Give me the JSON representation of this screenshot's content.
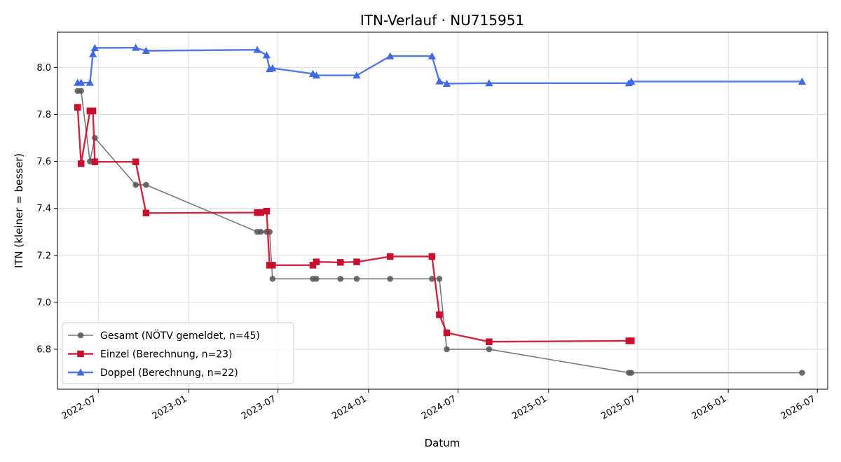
{
  "chart_data": {
    "type": "line",
    "title": "ITN-Verlauf · NU715951",
    "xlabel": "Datum",
    "ylabel": "ITN  (kleiner = besser)",
    "x_scale": "date",
    "xlim": [
      "2022-04-09",
      "2026-07-22"
    ],
    "ylim": [
      6.63,
      8.15
    ],
    "x_ticks": [
      "2022-07-01",
      "2023-01-01",
      "2023-07-01",
      "2024-01-01",
      "2024-07-01",
      "2025-01-01",
      "2025-07-01",
      "2026-01-01",
      "2026-07-01"
    ],
    "x_tick_labels": [
      "2022-07",
      "2023-01",
      "2023-07",
      "2024-01",
      "2024-07",
      "2025-01",
      "2025-07",
      "2026-01",
      "2026-07"
    ],
    "y_ticks": [
      6.8,
      7.0,
      7.2,
      7.4,
      7.6,
      7.8,
      8.0
    ],
    "y_tick_labels": [
      "6.8",
      "7.0",
      "7.2",
      "7.4",
      "7.6",
      "7.8",
      "8.0"
    ],
    "grid": true,
    "legend_position": "lower-left",
    "series": [
      {
        "name": "Gesamt (NÖTV gemeldet, n=45)",
        "color": "#555555",
        "marker": "circle",
        "points": [
          [
            "2022-05-20",
            7.9
          ],
          [
            "2022-05-27",
            7.9
          ],
          [
            "2022-06-14",
            7.6
          ],
          [
            "2022-06-24",
            7.7
          ],
          [
            "2022-09-15",
            7.5
          ],
          [
            "2022-10-06",
            7.5
          ],
          [
            "2023-05-20",
            7.3
          ],
          [
            "2023-05-27",
            7.3
          ],
          [
            "2023-06-08",
            7.3
          ],
          [
            "2023-06-14",
            7.3
          ],
          [
            "2023-06-20",
            7.1
          ],
          [
            "2023-09-10",
            7.1
          ],
          [
            "2023-09-17",
            7.1
          ],
          [
            "2023-11-05",
            7.1
          ],
          [
            "2023-12-08",
            7.1
          ],
          [
            "2024-02-14",
            7.1
          ],
          [
            "2024-05-09",
            7.1
          ],
          [
            "2024-05-24",
            7.1
          ],
          [
            "2024-06-08",
            6.8
          ],
          [
            "2024-09-02",
            6.8
          ],
          [
            "2025-06-13",
            6.7
          ],
          [
            "2025-06-18",
            6.7
          ],
          [
            "2026-05-31",
            6.7
          ]
        ]
      },
      {
        "name": "Einzel (Berechnung, n=23)",
        "color": "#c8102e",
        "marker": "square",
        "points": [
          [
            "2022-05-20",
            7.83
          ],
          [
            "2022-05-27",
            7.59
          ],
          [
            "2022-06-14",
            7.815
          ],
          [
            "2022-06-20",
            7.815
          ],
          [
            "2022-06-24",
            7.598
          ],
          [
            "2022-09-15",
            7.598
          ],
          [
            "2022-10-06",
            7.38
          ],
          [
            "2023-05-20",
            7.382
          ],
          [
            "2023-05-27",
            7.382
          ],
          [
            "2023-06-08",
            7.388
          ],
          [
            "2023-06-14",
            7.158
          ],
          [
            "2023-06-20",
            7.158
          ],
          [
            "2023-09-10",
            7.158
          ],
          [
            "2023-09-17",
            7.172
          ],
          [
            "2023-11-05",
            7.17
          ],
          [
            "2023-12-08",
            7.172
          ],
          [
            "2024-02-14",
            7.195
          ],
          [
            "2024-05-09",
            7.195
          ],
          [
            "2024-05-24",
            6.947
          ],
          [
            "2024-06-08",
            6.87
          ],
          [
            "2024-09-02",
            6.832
          ],
          [
            "2025-06-13",
            6.836
          ],
          [
            "2025-06-18",
            6.836
          ]
        ]
      },
      {
        "name": "Doppel (Berechnung, n=22)",
        "color": "#4169e1",
        "marker": "triangle",
        "points": [
          [
            "2022-05-20",
            7.935
          ],
          [
            "2022-05-27",
            7.935
          ],
          [
            "2022-06-14",
            7.935
          ],
          [
            "2022-06-20",
            8.057
          ],
          [
            "2022-06-24",
            8.083
          ],
          [
            "2022-09-15",
            8.084
          ],
          [
            "2022-10-06",
            8.071
          ],
          [
            "2023-05-20",
            8.075
          ],
          [
            "2023-06-08",
            8.052
          ],
          [
            "2023-06-14",
            7.993
          ],
          [
            "2023-06-20",
            7.997
          ],
          [
            "2023-09-10",
            7.973
          ],
          [
            "2023-09-17",
            7.966
          ],
          [
            "2023-12-08",
            7.966
          ],
          [
            "2024-02-14",
            8.048
          ],
          [
            "2024-05-09",
            8.048
          ],
          [
            "2024-05-24",
            7.941
          ],
          [
            "2024-06-08",
            7.931
          ],
          [
            "2024-09-02",
            7.933
          ],
          [
            "2025-06-13",
            7.933
          ],
          [
            "2025-06-18",
            7.94
          ],
          [
            "2026-05-31",
            7.94
          ]
        ]
      }
    ]
  }
}
